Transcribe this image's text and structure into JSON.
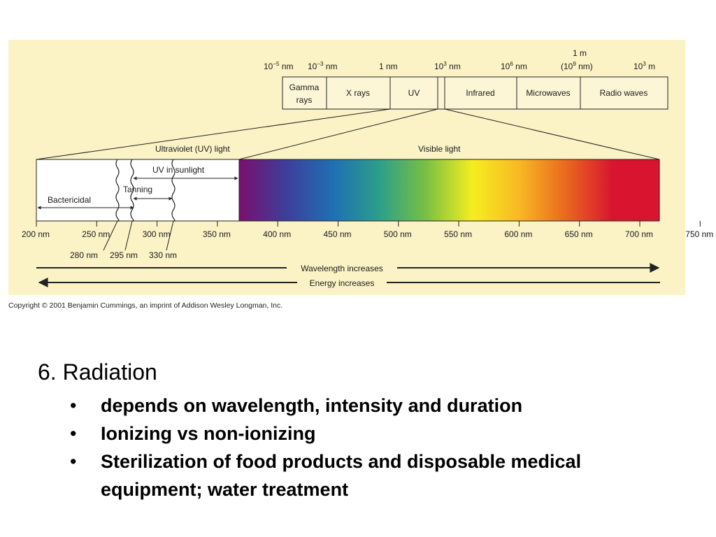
{
  "colors": {
    "panel_bg": "#fbf3c6",
    "box_fill": "#fdf6d6",
    "line": "#222222"
  },
  "spectrum_top": {
    "scale_labels": [
      {
        "id": "1e-5nm",
        "base": "10",
        "exp": "−5",
        "unit": " nm"
      },
      {
        "id": "1e-3nm",
        "base": "10",
        "exp": "−3",
        "unit": " nm"
      },
      {
        "id": "1nm",
        "base": "1 nm",
        "exp": "",
        "unit": ""
      },
      {
        "id": "1e3nm",
        "base": "10",
        "exp": "3",
        "unit": " nm"
      },
      {
        "id": "1e6nm",
        "base": "10",
        "exp": "6",
        "unit": " nm"
      },
      {
        "id": "1e3m",
        "base": "10",
        "exp": "3",
        "unit": " m"
      }
    ],
    "one_m": {
      "line1": "1 m",
      "line2_prefix": "(10",
      "line2_exp": "9",
      "line2_suffix": " nm)"
    },
    "bands": [
      {
        "line1": "Gamma",
        "line2": "rays"
      },
      {
        "line1": "X rays",
        "line2": ""
      },
      {
        "line1": "UV",
        "line2": ""
      },
      {
        "line1": "",
        "line2": ""
      },
      {
        "line1": "Infrared",
        "line2": ""
      },
      {
        "line1": "Microwaves",
        "line2": ""
      },
      {
        "line1": "Radio waves",
        "line2": ""
      }
    ]
  },
  "detail": {
    "uv_label": "Ultraviolet (UV) light",
    "visible_label": "Visible light",
    "uv_sunlight": "UV in sunlight",
    "tanning": "Tanning",
    "bactericidal": "Bactericidal",
    "nm_axis": [
      "200 nm",
      "250 nm",
      "300 nm",
      "350 nm",
      "400 nm",
      "450 nm",
      "500 nm",
      "550 nm",
      "600 nm",
      "650 nm",
      "700 nm",
      "750 nm"
    ],
    "sub_ticks": [
      "280 nm",
      "295 nm",
      "330 nm"
    ],
    "spectrum_colors": [
      "#7a0f6e",
      "#3d3e9a",
      "#1f6fb3",
      "#2c9e8a",
      "#78c043",
      "#f5ee1f",
      "#f8b824",
      "#e9681f",
      "#d8142f",
      "#d8142f"
    ]
  },
  "arrows": {
    "wavelength": "Wavelength increases",
    "energy": "Energy increases"
  },
  "copyright": "Copyright © 2001 Benjamin Cummings, an imprint of Addison Wesley Longman, Inc.",
  "slide": {
    "title": "6. Radiation",
    "bullets": [
      "depends on wavelength, intensity and duration",
      "Ionizing vs non-ionizing",
      "Sterilization of food products and disposable medical equipment; water treatment"
    ]
  }
}
